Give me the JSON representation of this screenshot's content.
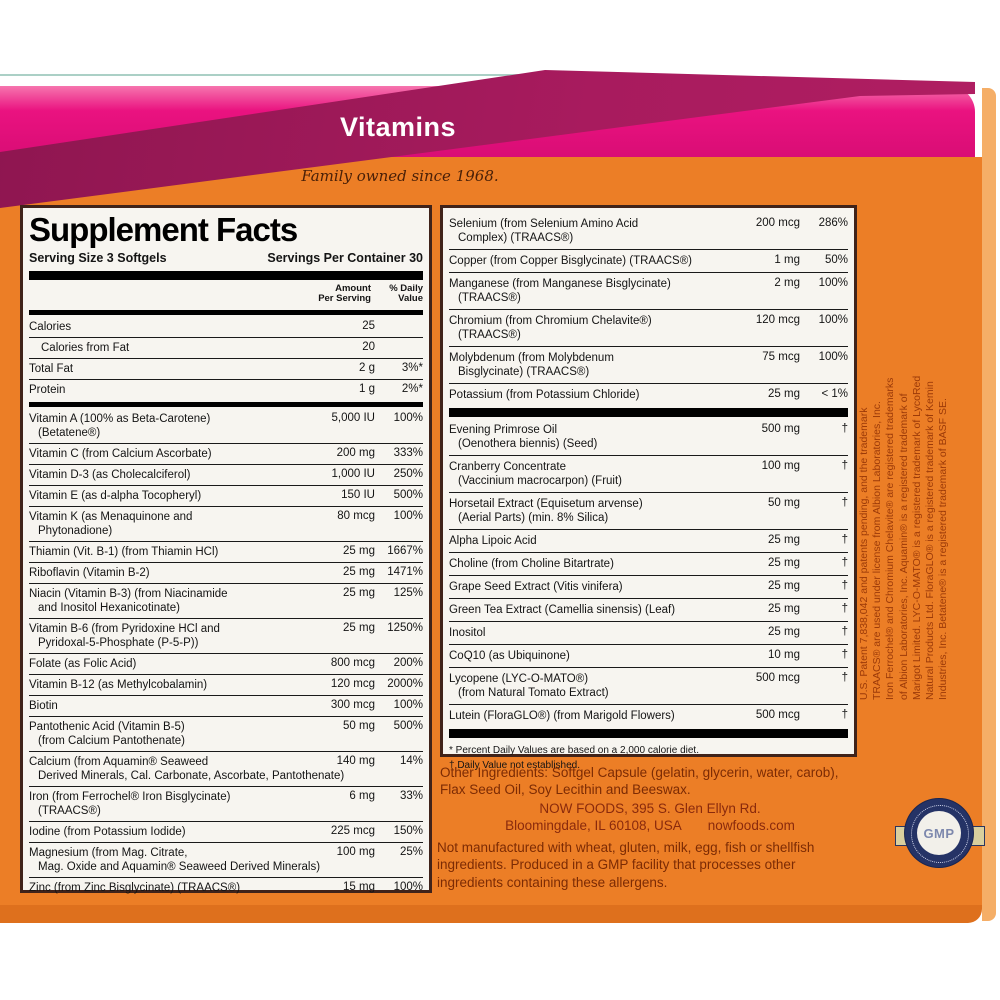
{
  "header": {
    "banner_title": "Vitamins",
    "tagline": "Family owned since 1968."
  },
  "facts": {
    "title": "Supplement Facts",
    "serving_size": "Serving Size 3 Softgels",
    "servings_per_container": "Servings Per Container 30",
    "col_amount_line1": "Amount",
    "col_amount_line2": "Per Serving",
    "col_dv_line1": "% Daily",
    "col_dv_line2": "Value"
  },
  "left_rows": [
    {
      "lines": [
        "Calories"
      ],
      "amount": "25",
      "dv": ""
    },
    {
      "lines": [
        "Calories from Fat"
      ],
      "amount": "20",
      "dv": "",
      "indent": true
    },
    {
      "lines": [
        "Total Fat"
      ],
      "amount": "2 g",
      "dv": "3%*"
    },
    {
      "lines": [
        "Protein"
      ],
      "amount": "1 g",
      "dv": "2%*"
    },
    {
      "bar": 5
    },
    {
      "lines": [
        "Vitamin A (100% as Beta-Carotene)",
        "(Betatene®)"
      ],
      "amount": "5,000 IU",
      "dv": "100%"
    },
    {
      "lines": [
        "Vitamin C (from Calcium Ascorbate)"
      ],
      "amount": "200 mg",
      "dv": "333%"
    },
    {
      "lines": [
        "Vitamin D-3 (as Cholecalciferol)"
      ],
      "amount": "1,000 IU",
      "dv": "250%"
    },
    {
      "lines": [
        "Vitamin E (as d-alpha Tocopheryl)"
      ],
      "amount": "150 IU",
      "dv": "500%"
    },
    {
      "lines": [
        "Vitamin K (as Menaquinone and",
        "Phytonadione)"
      ],
      "amount": "80 mcg",
      "dv": "100%"
    },
    {
      "lines": [
        "Thiamin (Vit. B-1) (from Thiamin HCl)"
      ],
      "amount": "25 mg",
      "dv": "1667%"
    },
    {
      "lines": [
        "Riboflavin (Vitamin B-2)"
      ],
      "amount": "25 mg",
      "dv": "1471%"
    },
    {
      "lines": [
        "Niacin (Vitamin B-3) (from Niacinamide",
        "and Inositol Hexanicotinate)"
      ],
      "amount": "25 mg",
      "dv": "125%"
    },
    {
      "lines": [
        "Vitamin B-6 (from Pyridoxine HCl and",
        "Pyridoxal-5-Phosphate (P-5-P))"
      ],
      "amount": "25 mg",
      "dv": "1250%"
    },
    {
      "lines": [
        "Folate (as Folic Acid)"
      ],
      "amount": "800 mcg",
      "dv": "200%"
    },
    {
      "lines": [
        "Vitamin B-12 (as Methylcobalamin)"
      ],
      "amount": "120 mcg",
      "dv": "2000%"
    },
    {
      "lines": [
        "Biotin"
      ],
      "amount": "300 mcg",
      "dv": "100%"
    },
    {
      "lines": [
        "Pantothenic Acid (Vitamin B-5)",
        "(from Calcium Pantothenate)"
      ],
      "amount": "50 mg",
      "dv": "500%"
    },
    {
      "lines": [
        "Calcium (from Aquamin® Seaweed",
        "Derived Minerals, Cal. Carbonate, Ascorbate, Pantothenate)"
      ],
      "amount": "140 mg",
      "dv": "14%"
    },
    {
      "lines": [
        "Iron (from Ferrochel® Iron Bisglycinate)",
        "(TRAACS®)"
      ],
      "amount": "6 mg",
      "dv": "33%"
    },
    {
      "lines": [
        "Iodine (from Potassium Iodide)"
      ],
      "amount": "225 mcg",
      "dv": "150%"
    },
    {
      "lines": [
        "Magnesium (from Mag. Citrate,",
        "Mag. Oxide and Aquamin® Seaweed Derived Minerals)"
      ],
      "amount": "100 mg",
      "dv": "25%"
    },
    {
      "lines": [
        "Zinc (from Zinc Bisglycinate) (TRAACS®)"
      ],
      "amount": "15 mg",
      "dv": "100%"
    }
  ],
  "right_rows": [
    {
      "lines": [
        "Selenium (from Selenium Amino Acid",
        "Complex) (TRAACS®)"
      ],
      "amount": "200 mcg",
      "dv": "286%"
    },
    {
      "lines": [
        "Copper (from Copper Bisglycinate) (TRAACS®)"
      ],
      "amount": "1 mg",
      "dv": "50%"
    },
    {
      "lines": [
        "Manganese (from Manganese Bisglycinate)",
        "(TRAACS®)"
      ],
      "amount": "2 mg",
      "dv": "100%"
    },
    {
      "lines": [
        "Chromium (from Chromium Chelavite®)",
        "(TRAACS®)"
      ],
      "amount": "120 mcg",
      "dv": "100%"
    },
    {
      "lines": [
        "Molybdenum (from Molybdenum",
        "Bisglycinate) (TRAACS®)"
      ],
      "amount": "75 mcg",
      "dv": "100%"
    },
    {
      "lines": [
        "Potassium (from Potassium Chloride)"
      ],
      "amount": "25 mg",
      "dv": "< 1%"
    },
    {
      "bar": 9
    },
    {
      "lines": [
        "Evening Primrose Oil",
        "(Oenothera biennis) (Seed)"
      ],
      "amount": "500 mg",
      "dv": "†"
    },
    {
      "lines": [
        "Cranberry Concentrate",
        "(Vaccinium macrocarpon) (Fruit)"
      ],
      "amount": "100 mg",
      "dv": "†"
    },
    {
      "lines": [
        "Horsetail Extract (Equisetum arvense)",
        "(Aerial Parts) (min. 8% Silica)"
      ],
      "amount": "50 mg",
      "dv": "†"
    },
    {
      "lines": [
        "Alpha Lipoic Acid"
      ],
      "amount": "25 mg",
      "dv": "†"
    },
    {
      "lines": [
        "Choline (from Choline Bitartrate)"
      ],
      "amount": "25 mg",
      "dv": "†"
    },
    {
      "lines": [
        "Grape Seed Extract (Vitis vinifera)"
      ],
      "amount": "25 mg",
      "dv": "†"
    },
    {
      "lines": [
        "Green Tea Extract (Camellia sinensis) (Leaf)"
      ],
      "amount": "25 mg",
      "dv": "†"
    },
    {
      "lines": [
        "Inositol"
      ],
      "amount": "25 mg",
      "dv": "†"
    },
    {
      "lines": [
        "CoQ10 (as Ubiquinone)"
      ],
      "amount": "10 mg",
      "dv": "†"
    },
    {
      "lines": [
        "Lycopene (LYC-O-MATO®)",
        "(from Natural Tomato Extract)"
      ],
      "amount": "500 mcg",
      "dv": "†"
    },
    {
      "lines": [
        "Lutein (FloraGLO®) (from Marigold Flowers)"
      ],
      "amount": "500 mcg",
      "dv": "†"
    },
    {
      "bar": 9
    }
  ],
  "footnotes": {
    "line1": "* Percent Daily Values are based on a 2,000 calorie diet.",
    "line2": "† Daily Value not established."
  },
  "bottom": {
    "other_ingredients": "Other Ingredients: Softgel Capsule (gelatin, glycerin, water, carob), Flax Seed Oil, Soy Lecithin and Beeswax.",
    "address_line1": "NOW FOODS, 395 S. Glen Ellyn Rd.",
    "address_line2": "Bloomingdale, IL 60108, USA",
    "website": "nowfoods.com",
    "allergen_statement": "Not manufactured with wheat, gluten, milk, egg, fish or shellfish ingredients. Produced in a GMP facility that processes other ingredients containing these allergens."
  },
  "legal": {
    "lines": [
      "U.S. Patent 7,838,042 and patents pending, and the trademark",
      "TRAACS® are used under license from Albion Laboratories, Inc.",
      "Iron Ferrochel® and Chromium Chelavite® are registered trademarks",
      "of Albion Laboratories, Inc.  Aquamin® is a registered trademark of",
      "Marigot Limited.  LYC-O-MATO® is a registered trademark of LycoRed",
      "Natural Products Ltd.  FloraGLO® is a registered trademark of Kemin",
      "Industries, Inc.  Betatene® is a registered trademark of BASF SE."
    ]
  },
  "gmp": {
    "label": "GMP"
  },
  "colors": {
    "orange": "#ec7e26",
    "orange_dark": "#de701d",
    "pink": "#ea1280",
    "magenta": "#a81b5e",
    "panel_bg": "#f7f5f0",
    "panel_border": "#40231a",
    "text_on_orange": "#7c2b04",
    "legal_text": "#9c3a08"
  }
}
